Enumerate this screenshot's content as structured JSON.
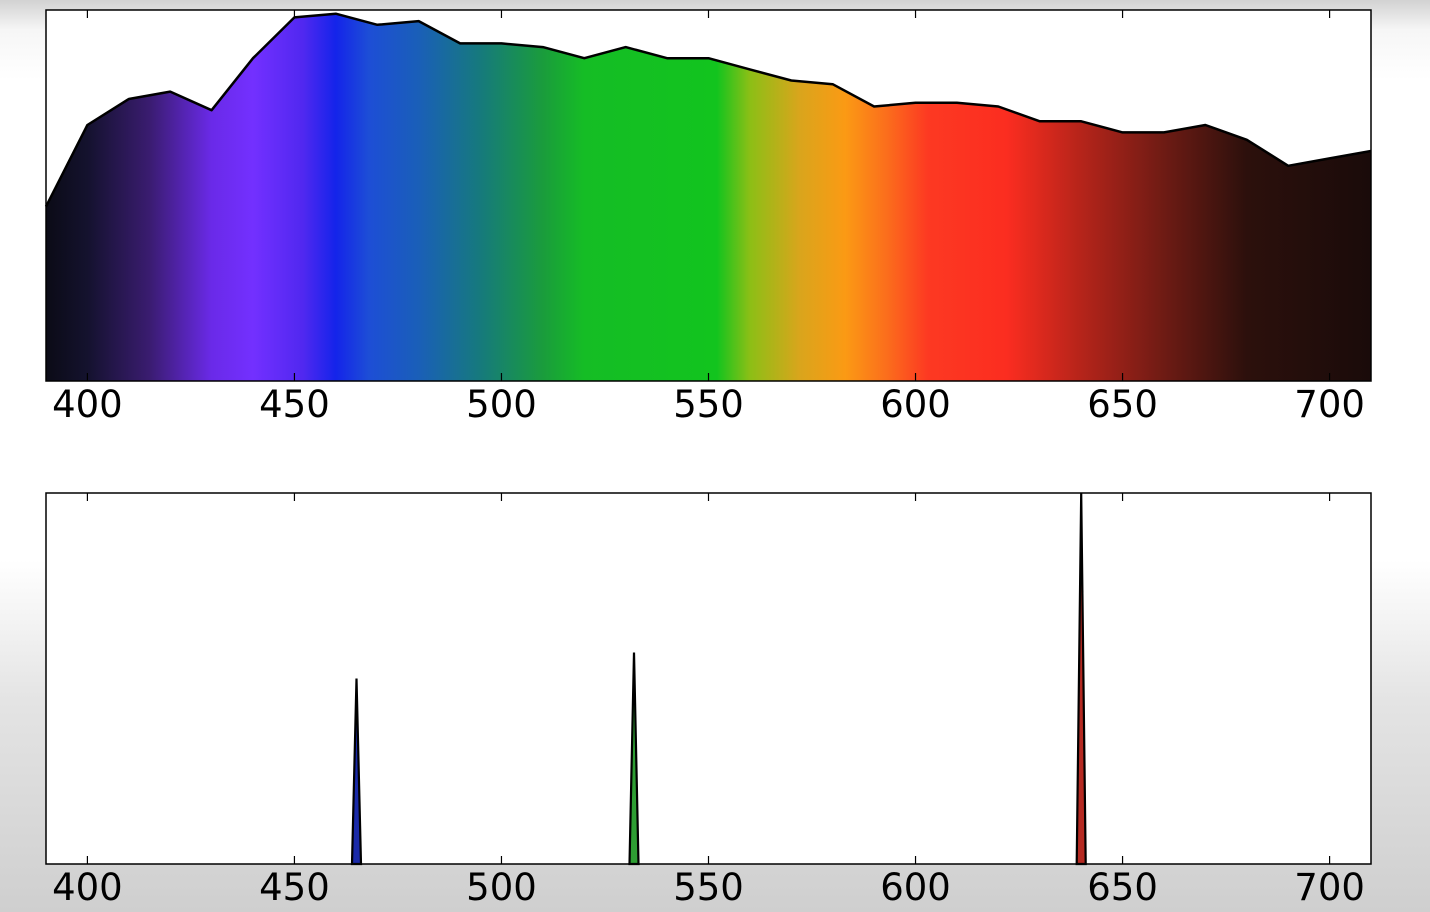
{
  "chart_data": [
    {
      "type": "area",
      "title": "",
      "xlabel": "",
      "ylabel": "",
      "xlim": [
        390,
        710
      ],
      "ylim": [
        0,
        1
      ],
      "grid": false,
      "xticks": [
        "400",
        "450",
        "500",
        "550",
        "600",
        "650",
        "700"
      ],
      "x": [
        390,
        400,
        410,
        420,
        430,
        440,
        450,
        460,
        470,
        480,
        490,
        500,
        510,
        520,
        530,
        540,
        550,
        560,
        570,
        580,
        590,
        600,
        610,
        620,
        630,
        640,
        650,
        660,
        670,
        680,
        690,
        700,
        710
      ],
      "y": [
        0.47,
        0.69,
        0.76,
        0.78,
        0.73,
        0.87,
        0.98,
        0.99,
        0.96,
        0.97,
        0.91,
        0.91,
        0.9,
        0.87,
        0.9,
        0.87,
        0.87,
        0.84,
        0.81,
        0.8,
        0.74,
        0.75,
        0.75,
        0.74,
        0.7,
        0.7,
        0.67,
        0.67,
        0.69,
        0.65,
        0.58,
        0.6,
        0.62
      ],
      "fill": "wavelength-color gradient"
    },
    {
      "type": "line",
      "title": "",
      "xlabel": "",
      "ylabel": "",
      "xlim": [
        390,
        710
      ],
      "ylim": [
        0,
        1
      ],
      "grid": false,
      "xticks": [
        "400",
        "450",
        "500",
        "550",
        "600",
        "650",
        "700"
      ],
      "series": [
        {
          "peak_x": 465,
          "peak_y": 0.5,
          "color": "#1a2aa8"
        },
        {
          "peak_x": 532,
          "peak_y": 0.57,
          "color": "#2e9e33"
        },
        {
          "peak_x": 640,
          "peak_y": 1.0,
          "color": "#b52a22"
        }
      ]
    }
  ],
  "colors": {
    "spectrum_stops": [
      {
        "nm": 390,
        "color": "#0b0b16"
      },
      {
        "nm": 400,
        "color": "#14122e"
      },
      {
        "nm": 415,
        "color": "#3a1c70"
      },
      {
        "nm": 430,
        "color": "#6a2ae8"
      },
      {
        "nm": 440,
        "color": "#7330ff"
      },
      {
        "nm": 452,
        "color": "#5128f0"
      },
      {
        "nm": 460,
        "color": "#1424ea"
      },
      {
        "nm": 468,
        "color": "#1d4ed6"
      },
      {
        "nm": 480,
        "color": "#1a5fb8"
      },
      {
        "nm": 495,
        "color": "#167a7c"
      },
      {
        "nm": 510,
        "color": "#1a9c3c"
      },
      {
        "nm": 520,
        "color": "#15bd25"
      },
      {
        "nm": 552,
        "color": "#12c41e"
      },
      {
        "nm": 560,
        "color": "#8cbf16"
      },
      {
        "nm": 572,
        "color": "#d9a51c"
      },
      {
        "nm": 583,
        "color": "#fb9a14"
      },
      {
        "nm": 593,
        "color": "#fb6e1c"
      },
      {
        "nm": 603,
        "color": "#fd3922"
      },
      {
        "nm": 622,
        "color": "#fb2d20"
      },
      {
        "nm": 640,
        "color": "#b5241a"
      },
      {
        "nm": 660,
        "color": "#6e1b14"
      },
      {
        "nm": 680,
        "color": "#2c100c"
      },
      {
        "nm": 710,
        "color": "#1a0b0a"
      }
    ],
    "axes_frame": "#000000"
  }
}
